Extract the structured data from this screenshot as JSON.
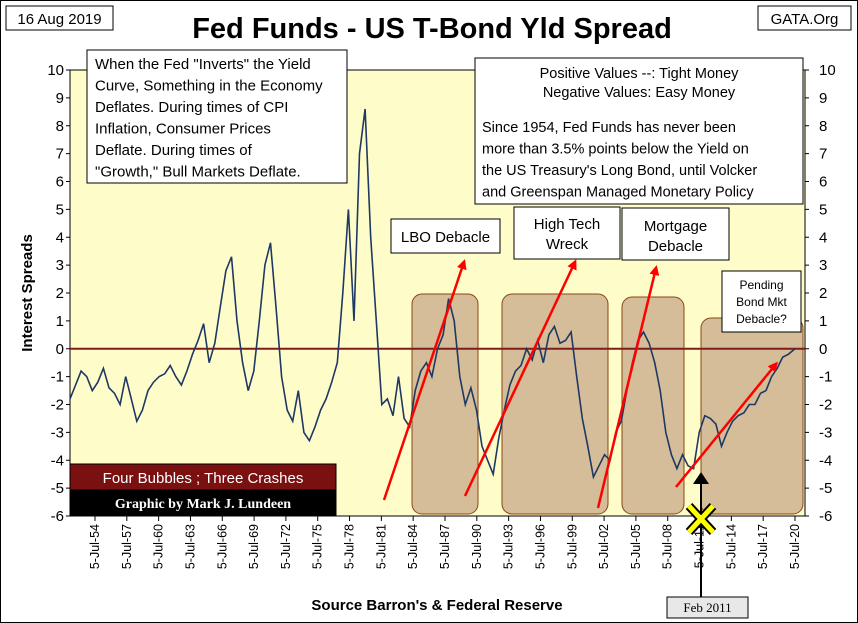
{
  "chart_data": {
    "type": "line",
    "title": "Fed Funds - US T-Bond Yld Spread",
    "date": "16 Aug 2019",
    "source_tag": "GATA.Org",
    "ylabel": "Interest Spreads",
    "xlabel": "Source Barron's & Federal Reserve",
    "ylim": [
      -6,
      10
    ],
    "xlim": [
      1954.5,
      2020.5
    ],
    "y_ticks": [
      "10",
      "9",
      "8",
      "7",
      "6",
      "5",
      "4",
      "3",
      "2",
      "1",
      "0",
      "-1",
      "-2",
      "-3",
      "-4",
      "-5",
      "-6"
    ],
    "x_ticks": [
      "5-Jul-54",
      "5-Jul-57",
      "5-Jul-60",
      "5-Jul-63",
      "5-Jul-66",
      "5-Jul-69",
      "5-Jul-72",
      "5-Jul-75",
      "5-Jul-78",
      "5-Jul-81",
      "5-Jul-84",
      "5-Jul-87",
      "5-Jul-90",
      "5-Jul-93",
      "5-Jul-96",
      "5-Jul-99",
      "5-Jul-02",
      "5-Jul-05",
      "5-Jul-08",
      "5-Jul-11",
      "5-Jul-14",
      "5-Jul-17",
      "5-Jul-20"
    ],
    "grid": false,
    "colors": {
      "plot_bg": "#fefdca",
      "line": "#1f3864",
      "zero_line": "#7f1d1d",
      "arrow": "#ff0000",
      "box_fill": "#ccb28f",
      "box_edge": "#8b4513",
      "marker": "#ffff00"
    },
    "series": [
      {
        "x": [
          1954.5,
          1955.0,
          1955.5,
          1956.0,
          1956.5,
          1957.0,
          1957.5,
          1958.0,
          1958.5,
          1959.0,
          1959.5,
          1960.0,
          1960.5,
          1961.0,
          1961.5,
          1962.0,
          1962.5,
          1963.0,
          1963.5,
          1964.0,
          1964.5,
          1965.0,
          1965.5,
          1966.0,
          1966.5,
          1967.0,
          1967.5,
          1968.0,
          1968.5,
          1969.0,
          1969.5,
          1970.0,
          1970.5,
          1971.0,
          1971.5,
          1972.0,
          1972.5,
          1973.0,
          1973.5,
          1974.0,
          1974.5,
          1975.0,
          1975.5,
          1976.0,
          1976.5,
          1977.0,
          1977.5,
          1978.0,
          1978.5,
          1979.0,
          1979.5,
          1980.0,
          1980.5,
          1981.0,
          1981.5,
          1982.0,
          1982.5,
          1983.0,
          1983.5,
          1984.0,
          1984.5,
          1985.0,
          1985.5,
          1986.0,
          1986.5,
          1987.0,
          1987.5,
          1988.0,
          1988.5,
          1989.0,
          1989.5,
          1990.0,
          1990.5,
          1991.0,
          1991.5,
          1992.0,
          1992.5,
          1993.0,
          1993.5,
          1994.0,
          1994.5,
          1995.0,
          1995.5,
          1996.0,
          1996.5,
          1997.0,
          1997.5,
          1998.0,
          1998.5,
          1999.0,
          1999.5,
          2000.0,
          2000.5,
          2001.0,
          2001.5,
          2002.0,
          2002.5,
          2003.0,
          2003.5,
          2004.0,
          2004.5,
          2005.0,
          2005.5,
          2006.0,
          2006.5,
          2007.0,
          2007.5,
          2008.0,
          2008.5,
          2009.0,
          2009.5,
          2010.0,
          2010.5,
          2011.0,
          2011.5,
          2012.0,
          2012.5,
          2013.0,
          2013.5,
          2014.0,
          2014.5,
          2015.0,
          2015.5,
          2016.0,
          2016.5,
          2017.0,
          2017.5,
          2018.0,
          2018.5,
          2019.0,
          2019.6
        ],
        "values": [
          -1.8,
          -1.3,
          -0.8,
          -1.0,
          -1.5,
          -1.2,
          -0.7,
          -1.4,
          -1.6,
          -2.0,
          -1.0,
          -1.8,
          -2.6,
          -2.2,
          -1.5,
          -1.2,
          -1.0,
          -0.9,
          -0.6,
          -1.0,
          -1.3,
          -0.8,
          -0.2,
          0.3,
          0.9,
          -0.5,
          0.2,
          1.5,
          2.8,
          3.3,
          1.0,
          -0.5,
          -1.5,
          -0.8,
          1.0,
          3.0,
          3.8,
          1.5,
          -1.0,
          -2.2,
          -2.6,
          -1.5,
          -3.0,
          -3.3,
          -2.8,
          -2.2,
          -1.8,
          -1.2,
          -0.5,
          2.0,
          5.0,
          1.0,
          7.0,
          8.6,
          4.0,
          1.0,
          -2.0,
          -1.8,
          -2.4,
          -1.0,
          -2.5,
          -2.8,
          -1.5,
          -0.8,
          -0.5,
          -1.0,
          0.0,
          0.5,
          1.8,
          1.0,
          -1.0,
          -2.0,
          -1.4,
          -2.2,
          -3.5,
          -4.0,
          -4.5,
          -3.2,
          -2.2,
          -1.3,
          -0.8,
          -0.6,
          0.0,
          -0.4,
          0.3,
          -0.5,
          0.5,
          0.8,
          0.2,
          0.3,
          0.6,
          -1.0,
          -2.5,
          -3.5,
          -4.6,
          -4.2,
          -3.8,
          -4.0,
          -3.0,
          -2.6,
          -1.5,
          -0.5,
          0.3,
          0.6,
          0.2,
          -0.5,
          -1.5,
          -3.0,
          -3.8,
          -4.3,
          -3.8,
          -4.2,
          -4.3,
          -3.0,
          -2.4,
          -2.5,
          -2.7,
          -3.5,
          -3.0,
          -2.6,
          -2.4,
          -2.3,
          -2.0,
          -2.0,
          -1.6,
          -1.5,
          -1.0,
          -0.7,
          -0.3,
          -0.2,
          0.0
        ]
      }
    ],
    "annotations": {
      "inversion_note": [
        "When the Fed \"Inverts\" the Yield",
        "Curve, Something in the Economy",
        "Deflates.  During times of CPI",
        "Inflation, Consumer Prices",
        "Deflate.  During times of",
        "\"Growth,\" Bull Markets Deflate."
      ],
      "legend_note": [
        "Positive Values --: Tight Money",
        "Negative Values: Easy Money"
      ],
      "history_note": [
        "Since 1954, Fed Funds has never been",
        "more than 3.5% points below the Yield on",
        "the US Treasury's Long Bond, until Volcker",
        "and Greenspan Managed Monetary Policy"
      ],
      "lbo": [
        "LBO Debacle"
      ],
      "high_tech": [
        "High Tech",
        "Wreck"
      ],
      "mortgage": [
        "Mortgage",
        "Debacle"
      ],
      "pending": [
        "Pending",
        "Bond Mkt",
        "Debacle?"
      ],
      "bubbles_label": "Four Bubbles ; Three Crashes",
      "credit_label": "Graphic by Mark J. Lundeen",
      "feb_label": "Feb 2011"
    }
  }
}
